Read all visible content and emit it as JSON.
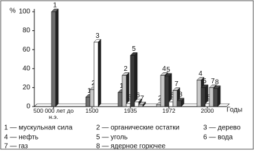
{
  "chart_data": {
    "type": "bar",
    "y_label": "%",
    "x_label": "Годы",
    "categories": [
      "500 000 лет до н.э.",
      "1500",
      "1935",
      "1972",
      "2000"
    ],
    "ylim": [
      0,
      100
    ],
    "yticks": [
      0,
      20,
      40,
      60,
      80,
      100
    ],
    "series": [
      {
        "label": "1",
        "name": "1 — мускульная сила",
        "color": "#6e6e6e",
        "values": [
          100,
          10,
          15,
          null,
          null
        ]
      },
      {
        "label": "2",
        "name": "2 — органические остатки",
        "color": "#c8c8c8",
        "values": [
          null,
          18,
          33,
          2,
          null
        ]
      },
      {
        "label": "3",
        "name": "3 — дерево",
        "color": "#ffffff",
        "values": [
          null,
          68,
          3,
          null,
          null
        ]
      },
      {
        "label": "4",
        "name": "4 — нефть",
        "color": "#c8c8c8",
        "values": [
          null,
          null,
          null,
          33,
          28
        ]
      },
      {
        "label": "5",
        "name": "5 — уголь",
        "color": "#3a3a3a",
        "values": [
          null,
          null,
          54,
          32,
          20
        ]
      },
      {
        "label": "6",
        "name": "6 — вода",
        "color": "#ffffff",
        "values": [
          null,
          null,
          5,
          5,
          3
        ]
      },
      {
        "label": "7",
        "name": "7 — газ",
        "color": "#c8c8c8",
        "values": [
          null,
          null,
          2,
          17,
          20
        ]
      },
      {
        "label": "8",
        "name": "8 — ядерное горючее",
        "color": "#4a4a4a",
        "values": [
          null,
          null,
          null,
          6,
          19
        ]
      }
    ]
  }
}
